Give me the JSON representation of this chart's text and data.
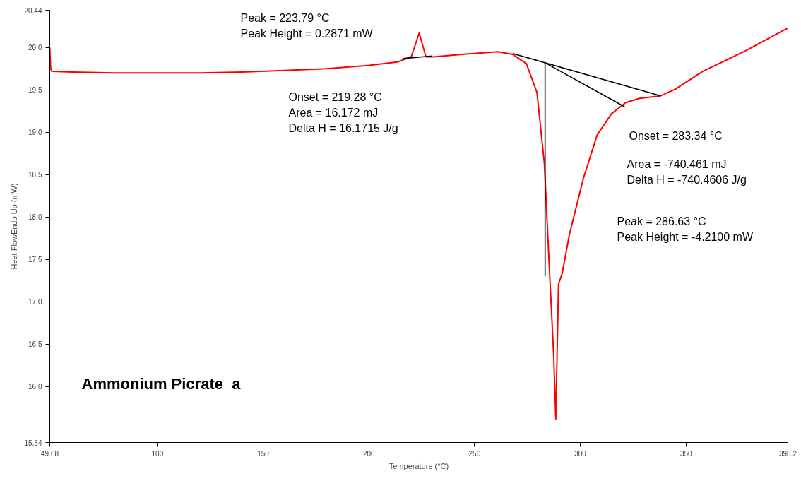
{
  "chart_data": {
    "type": "line",
    "xlabel": "Temperature (°C)",
    "ylabel": "Heat FlowEndo Up (mW)",
    "xlim": [
      49.08,
      398.2
    ],
    "ylim": [
      15.34,
      20.44
    ],
    "xticks": [
      49.08,
      100,
      150,
      200,
      250,
      300,
      350,
      398.2
    ],
    "yticks": [
      15.34,
      {
        "value": 15.5,
        "label": null
      },
      {
        "value": 16,
        "label": "16.0"
      },
      16.5,
      {
        "value": 17,
        "label": "17.0"
      },
      17.5,
      {
        "value": 18,
        "label": "18.0"
      },
      18.5,
      {
        "value": 19,
        "label": "19.0"
      },
      19.5,
      {
        "value": 20,
        "label": "20.0"
      },
      20.44
    ],
    "grid": false,
    "line_style": "solid",
    "marker": "none",
    "series": [
      {
        "color": "#ff0000",
        "x": [
          49.08,
          49.5,
          50,
          60,
          80,
          100,
          120,
          140,
          160,
          180,
          200,
          213.5,
          220,
          223.79,
          227,
          230.6,
          244,
          261,
          268,
          274.5,
          279.5,
          283,
          285.4,
          287.4,
          288.4,
          289.7,
          291.4,
          294.8,
          301.5,
          308,
          314.8,
          321.5,
          328,
          338,
          345,
          358,
          378,
          398.2
        ],
        "values": [
          20.0,
          19.75,
          19.72,
          19.71,
          19.7,
          19.7,
          19.7,
          19.71,
          19.73,
          19.75,
          19.79,
          19.83,
          19.89,
          20.17,
          19.89,
          19.89,
          19.92,
          19.95,
          19.92,
          19.81,
          19.47,
          18.63,
          17.38,
          16.37,
          15.62,
          17.21,
          17.33,
          17.79,
          18.46,
          18.97,
          19.22,
          19.35,
          19.4,
          19.43,
          19.51,
          19.72,
          19.96,
          20.23
        ]
      },
      {
        "color": "#000000",
        "x": [
          216,
          230
        ],
        "values": [
          19.87,
          19.9
        ]
      },
      {
        "color": "#000000",
        "x": [
          268,
          338
        ],
        "values": [
          19.93,
          19.43
        ]
      },
      {
        "color": "#000000",
        "x": [
          283.34,
          321
        ],
        "values": [
          19.82,
          19.3
        ]
      },
      {
        "color": "#000000",
        "x": [
          283.34,
          283.34
        ],
        "values": [
          19.82,
          17.3
        ]
      }
    ],
    "annotations": [
      "Peak = 223.79 °C\nPeak Height = 0.2871 mW",
      "Onset = 219.28 °C\nArea = 16.172 mJ\nDelta H = 16.1715 J/g",
      "Onset = 283.34 °C",
      "Area = -740.461 mJ\nDelta H = -740.4606 J/g",
      "Peak = 286.63 °C\nPeak Height = -4.2100 mW",
      "Ammonium Picrate_a"
    ]
  }
}
